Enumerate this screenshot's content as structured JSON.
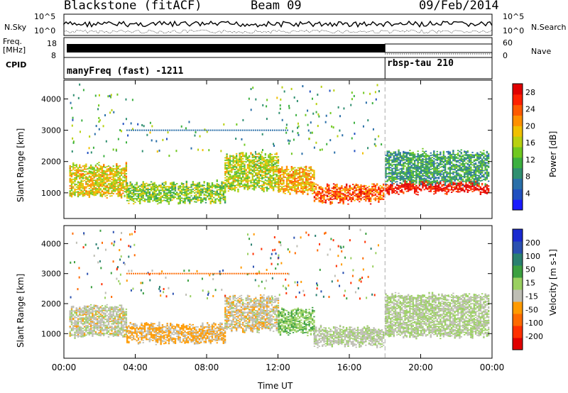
{
  "header": {
    "station": "Blackstone (fitACF)",
    "beam": "Beam 09",
    "date": "09/Feb/2014"
  },
  "side_labels": {
    "nsky": "N.Sky",
    "freq": "Freq.",
    "mhz": "[MHz]",
    "cpid": "CPID",
    "nsearch": "N.Search",
    "nave": "Nave"
  },
  "noise_panel": {
    "ytick_left_top": "10^5",
    "ytick_left_bottom": "10^0",
    "ytick_right_top": "10^5",
    "ytick_right_bottom": "10^0"
  },
  "freq_panel": {
    "ytick_left_top": "18",
    "ytick_left_bottom": "8",
    "ytick_right_top": "60",
    "ytick_right_bottom": "0"
  },
  "cpid_panel": {
    "mode1": "manyFreq (fast) -1211",
    "mode2": "rbsp-tau 210",
    "switch_hour": 18
  },
  "colors": {
    "accent_dash": "#aaaaaa"
  },
  "chart_data": [
    {
      "type": "heatmap",
      "ylabel": "Slant Range [km]",
      "xlabel": "Time UT",
      "x_ticks": [
        "00:00",
        "04:00",
        "08:00",
        "12:00",
        "16:00",
        "20:00",
        "00:00"
      ],
      "xlim_hours": [
        0,
        24
      ],
      "y_ticks": [
        "1000",
        "2000",
        "3000",
        "4000"
      ],
      "ylim_km": [
        180,
        4600
      ],
      "colorbar": {
        "label": "Power [dB]",
        "ticks": [
          "4",
          "8",
          "12",
          "16",
          "20",
          "24",
          "28"
        ],
        "range": [
          0,
          30
        ],
        "colors": [
          "#1a1aff",
          "#2050c0",
          "#2a6fa8",
          "#2f8f70",
          "#3cb040",
          "#70c820",
          "#b8d010",
          "#f0c000",
          "#ff9000",
          "#ff5a00",
          "#ff2000",
          "#e00000"
        ]
      },
      "bands": [
        {
          "t0": 0.3,
          "t1": 3.5,
          "r0": 900,
          "r1": 1900,
          "v": 18
        },
        {
          "t0": 3.5,
          "t1": 9.0,
          "r0": 700,
          "r1": 1300,
          "v": 14
        },
        {
          "t0": 9.0,
          "t1": 12.0,
          "r0": 1100,
          "r1": 2200,
          "v": 16
        },
        {
          "t0": 12.0,
          "t1": 14.0,
          "r0": 1000,
          "r1": 1800,
          "v": 20
        },
        {
          "t0": 14.0,
          "t1": 17.9,
          "r0": 700,
          "r1": 1200,
          "v": 24
        },
        {
          "t0": 18.0,
          "t1": 23.8,
          "r0": 1000,
          "r1": 1300,
          "v": 28
        },
        {
          "t0": 18.0,
          "t1": 23.8,
          "r0": 1300,
          "r1": 2300,
          "v": 10
        }
      ]
    },
    {
      "type": "heatmap",
      "ylabel": "Slant Range [km]",
      "xlabel": "Time UT",
      "x_ticks": [
        "00:00",
        "04:00",
        "08:00",
        "12:00",
        "16:00",
        "20:00",
        "00:00"
      ],
      "xlim_hours": [
        0,
        24
      ],
      "y_ticks": [
        "1000",
        "2000",
        "3000",
        "4000"
      ],
      "ylim_km": [
        180,
        4600
      ],
      "colorbar": {
        "label": "Velocity [m s-1]",
        "ticks": [
          "200",
          "100",
          "50",
          "15",
          "-15",
          "-50",
          "-100",
          "-200"
        ],
        "range": [
          -250,
          250
        ],
        "colors": [
          "#e00000",
          "#ff3000",
          "#ff6a00",
          "#ff9a00",
          "#bebeb4",
          "#9ad060",
          "#3ca040",
          "#2a8070",
          "#2a50b0",
          "#1a2ad0"
        ]
      },
      "bands": [
        {
          "t0": 0.3,
          "t1": 3.5,
          "r0": 900,
          "r1": 1900,
          "v": -20
        },
        {
          "t0": 3.5,
          "t1": 9.0,
          "r0": 700,
          "r1": 1300,
          "v": -60
        },
        {
          "t0": 9.0,
          "t1": 12.0,
          "r0": 1100,
          "r1": 2200,
          "v": -30
        },
        {
          "t0": 12.0,
          "t1": 14.0,
          "r0": 1000,
          "r1": 1800,
          "v": 40
        },
        {
          "t0": 14.0,
          "t1": 17.9,
          "r0": 600,
          "r1": 1200,
          "v": -10
        },
        {
          "t0": 18.0,
          "t1": 23.8,
          "r0": 900,
          "r1": 2300,
          "v": 0
        }
      ]
    }
  ]
}
